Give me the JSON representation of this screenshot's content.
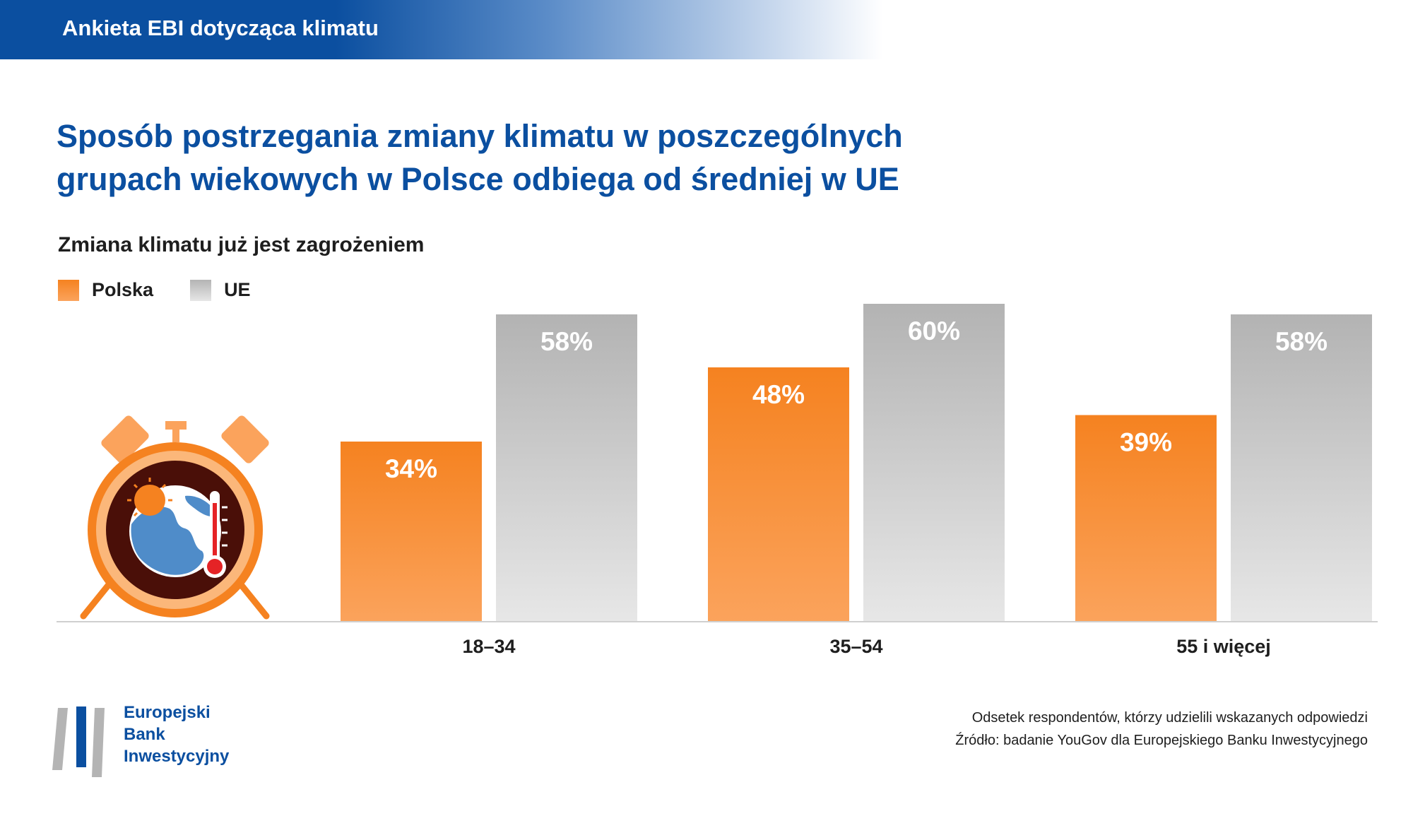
{
  "header": {
    "title": "Ankieta EBI dotycząca klimatu"
  },
  "main_title": {
    "line1": "Sposób postrzegania zmiany klimatu w poszczególnych",
    "line2": "grupach wiekowych w Polsce odbiega od średniej w UE"
  },
  "legend": [
    {
      "label": "Polska",
      "color": "#f58220"
    },
    {
      "label": "UE",
      "color": "#b4b4b4"
    }
  ],
  "chart_data": {
    "type": "bar",
    "title": "Zmiana klimatu już jest zagrożeniem",
    "categories": [
      "18–34",
      "35–54",
      "55 i więcej"
    ],
    "series": [
      {
        "name": "Polska",
        "values": [
          34,
          48,
          39
        ],
        "labels": [
          "34%",
          "48%",
          "39%"
        ],
        "color": "#f58220"
      },
      {
        "name": "UE",
        "values": [
          58,
          60,
          58
        ],
        "labels": [
          "58%",
          "60%",
          "58%"
        ],
        "color": "#b4b4b4"
      }
    ],
    "ylim": [
      0,
      100
    ],
    "unit": "%",
    "grid": false,
    "legend_position": "top-left"
  },
  "footnote": {
    "line1": "Odsetek respondentów, którzy udzielili wskazanych odpowiedzi",
    "line2": "Źródło: badanie YouGov dla Europejskiego Banku Inwestycyjnego"
  },
  "logo": {
    "line1": "Europejski",
    "line2": "Bank",
    "line3": "Inwestycyjny"
  }
}
